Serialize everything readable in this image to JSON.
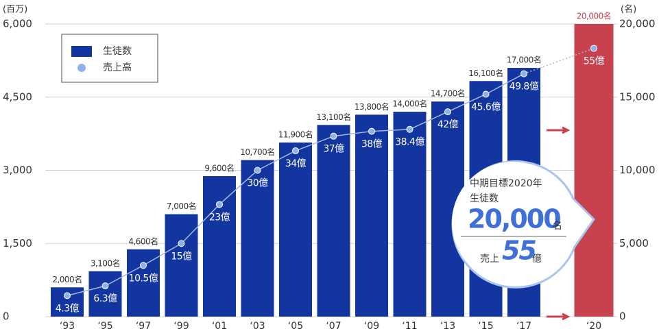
{
  "chart_data": {
    "type": "bar",
    "ylabel": "(百万)",
    "y2label": "(名)",
    "categories": [
      "‘93",
      "‘95",
      "‘97",
      "‘99",
      "‘01",
      "‘03",
      "‘05",
      "‘07",
      "‘09",
      "‘11",
      "‘13",
      "‘15",
      "‘17",
      "‘20"
    ],
    "series": [
      {
        "name": "生徒数",
        "type": "bar",
        "axis": "y2",
        "color": "#1235a0",
        "highlight_color": "#c8414f",
        "values": [
          2000,
          3100,
          4600,
          7000,
          9600,
          10700,
          11900,
          13100,
          13800,
          14000,
          14700,
          16100,
          17000,
          20000
        ],
        "value_labels": [
          "2,000名",
          "3,100名",
          "4,600名",
          "7,000名",
          "9,600名",
          "10,700名",
          "11,900名",
          "13,100名",
          "13,800名",
          "14,000名",
          "14,700名",
          "16,100名",
          "17,000名",
          "20,000名"
        ]
      },
      {
        "name": "売上高",
        "type": "line",
        "axis": "y",
        "color": "#8fb0ee",
        "values": [
          430,
          630,
          1050,
          1500,
          2300,
          3000,
          3400,
          3700,
          3800,
          3840,
          4200,
          4560,
          4980,
          5500
        ],
        "value_labels": [
          "4.3億",
          "6.3億",
          "10.5億",
          "15億",
          "23億",
          "30億",
          "34億",
          "37億",
          "38億",
          "38.4億",
          "42億",
          "45.6億",
          "49.8億",
          "55億"
        ]
      }
    ],
    "ylim": [
      0,
      6000
    ],
    "yticks": [
      {
        "value": 0,
        "label": "0"
      },
      {
        "value": 1500,
        "label": "1,500"
      },
      {
        "value": 3000,
        "label": "3,000"
      },
      {
        "value": 4500,
        "label": "4,500"
      },
      {
        "value": 6000,
        "label": "6,000"
      }
    ],
    "y2lim": [
      0,
      20000
    ],
    "y2ticks": [
      {
        "value": 0,
        "label": "0"
      },
      {
        "value": 5000,
        "label": "5,000"
      },
      {
        "value": 10000,
        "label": "10,000"
      },
      {
        "value": 15000,
        "label": "15,000"
      },
      {
        "value": 20000,
        "label": "20,000"
      }
    ],
    "grid": true,
    "callout": {
      "line1": "中期目標2020年",
      "line2": "生徒数",
      "students": "20,000",
      "students_unit": "名",
      "sales_label": "売上",
      "sales": "55",
      "sales_unit": "億"
    }
  }
}
